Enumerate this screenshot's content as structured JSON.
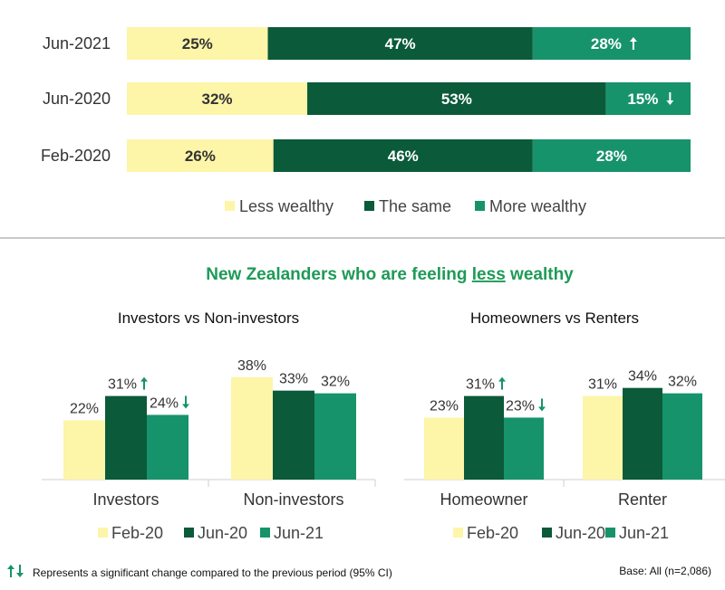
{
  "colors": {
    "less": "#fdf5a8",
    "same": "#0b5a3a",
    "more": "#17936b",
    "title": "#1e9a57",
    "arrow": "#17936b"
  },
  "chart_data": [
    {
      "type": "bar",
      "orientation": "horizontal-stacked-100",
      "categories": [
        "Jun-2021",
        "Jun-2020",
        "Feb-2020"
      ],
      "series": [
        {
          "name": "Less wealthy",
          "values": [
            25,
            32,
            26
          ],
          "labels": [
            "25%",
            "32%",
            "26%"
          ]
        },
        {
          "name": "The same",
          "values": [
            47,
            53,
            46
          ],
          "labels": [
            "47%",
            "53%",
            "46%"
          ]
        },
        {
          "name": "More wealthy",
          "values": [
            28,
            15,
            28
          ],
          "labels": [
            "28%",
            "15%",
            "28%"
          ]
        }
      ],
      "change_markers": [
        {
          "category": "Jun-2021",
          "series": "More wealthy",
          "direction": "up"
        },
        {
          "category": "Jun-2020",
          "series": "More wealthy",
          "direction": "down"
        }
      ],
      "legend": "bottom"
    },
    {
      "type": "bar",
      "title": "Investors vs Non-investors",
      "categories": [
        "Investors",
        "Non-investors"
      ],
      "series": [
        {
          "name": "Feb-20",
          "values": [
            22,
            38
          ],
          "labels": [
            "22%",
            "38%"
          ]
        },
        {
          "name": "Jun-20",
          "values": [
            31,
            33
          ],
          "labels": [
            "31%",
            "33%"
          ]
        },
        {
          "name": "Jun-21",
          "values": [
            24,
            32
          ],
          "labels": [
            "24%",
            "32%"
          ]
        }
      ],
      "change_markers": [
        {
          "category": "Investors",
          "series": "Jun-20",
          "direction": "up"
        },
        {
          "category": "Investors",
          "series": "Jun-21",
          "direction": "down"
        }
      ],
      "legend": "bottom"
    },
    {
      "type": "bar",
      "title": "Homeowners vs Renters",
      "categories": [
        "Homeowner",
        "Renter"
      ],
      "series": [
        {
          "name": "Feb-20",
          "values": [
            23,
            31
          ],
          "labels": [
            "23%",
            "31%"
          ]
        },
        {
          "name": "Jun-20",
          "values": [
            31,
            34
          ],
          "labels": [
            "31%",
            "34%"
          ]
        },
        {
          "name": "Jun-21",
          "values": [
            23,
            32
          ],
          "labels": [
            "23%",
            "32%"
          ]
        }
      ],
      "change_markers": [
        {
          "category": "Homeowner",
          "series": "Jun-20",
          "direction": "up"
        },
        {
          "category": "Homeowner",
          "series": "Jun-21",
          "direction": "down"
        }
      ],
      "legend": "bottom"
    }
  ],
  "section_title": {
    "pre": "New Zealanders who are feeling ",
    "emph": "less",
    "post": " wealthy"
  },
  "footnote": "Represents a significant change compared to the previous period (95% CI)",
  "base_note": "Base: All (n=2,086)"
}
